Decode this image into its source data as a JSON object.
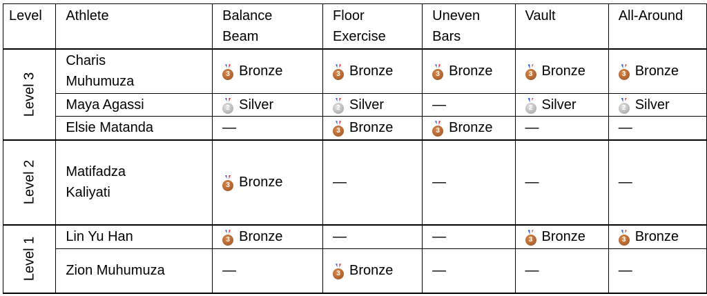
{
  "headers": [
    "Level",
    "Athlete",
    "Balance Beam",
    "Floor Exercise",
    "Uneven Bars",
    "Vault",
    "All-Around"
  ],
  "colors": {
    "bronze": "#b0602a",
    "silver": "#b5b5b5"
  },
  "groups": [
    {
      "level": "Level 3",
      "rows": [
        {
          "athlete": "Charis Muhumuza",
          "results": [
            "Bronze",
            "Bronze",
            "Bronze",
            "Bronze",
            "Bronze"
          ]
        },
        {
          "athlete": "Maya Agassi",
          "results": [
            "Silver",
            "Silver",
            "—",
            "Silver",
            "Silver"
          ]
        },
        {
          "athlete": "Elsie Matanda",
          "results": [
            "—",
            "Bronze",
            "Bronze",
            "—",
            "—"
          ]
        }
      ]
    },
    {
      "level": "Level 2",
      "rows": [
        {
          "athlete": "Matifadza Kaliyati",
          "results": [
            "Bronze",
            "—",
            "—",
            "—",
            "—"
          ]
        }
      ]
    },
    {
      "level": "Level 1",
      "rows": [
        {
          "athlete": "Lin Yu Han",
          "results": [
            "Bronze",
            "—",
            "—",
            "Bronze",
            "Bronze"
          ]
        },
        {
          "athlete": "Zion Muhumuza",
          "results": [
            "—",
            "Bronze",
            "—",
            "—",
            "—"
          ]
        }
      ]
    }
  ]
}
